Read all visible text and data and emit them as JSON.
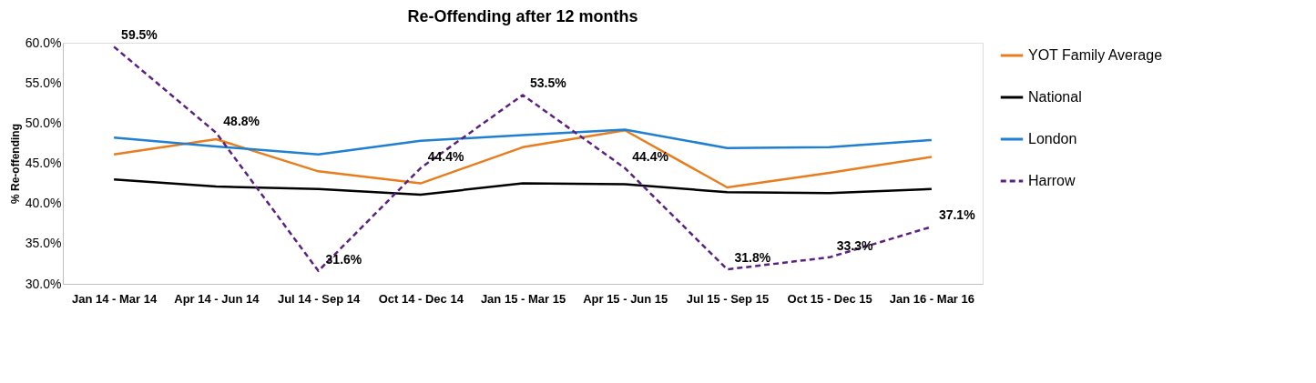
{
  "chart_data": {
    "type": "line",
    "title": "Re-Offending after 12 months",
    "ylabel": "% Re-offending",
    "categories": [
      "Jan 14 - Mar 14",
      "Apr 14 - Jun 14",
      "Jul 14 - Sep 14",
      "Oct 14 - Dec 14",
      "Jan 15 - Mar 15",
      "Apr 15 - Jun 15",
      "Jul 15 - Sep 15",
      "Oct 15 - Dec 15",
      "Jan 16 - Mar 16"
    ],
    "ylim": [
      30,
      60
    ],
    "yticks": [
      {
        "value": 30,
        "label": "30.0%"
      },
      {
        "value": 35,
        "label": "35.0%"
      },
      {
        "value": 40,
        "label": "40.0%"
      },
      {
        "value": 45,
        "label": "45.0%"
      },
      {
        "value": 50,
        "label": "50.0%"
      },
      {
        "value": 55,
        "label": "55.0%"
      },
      {
        "value": 60,
        "label": "60.0%"
      }
    ],
    "grid": false,
    "legend": "right",
    "marker": "none",
    "series": [
      {
        "name": "YOT Family Average",
        "color": "#e87d1e",
        "line_style": "solid",
        "values": [
          46.1,
          48.0,
          44.0,
          42.5,
          47.0,
          49.1,
          42.0,
          43.8,
          45.8
        ]
      },
      {
        "name": "National",
        "color": "#000000",
        "line_style": "solid",
        "values": [
          43.0,
          42.1,
          41.8,
          41.1,
          42.5,
          42.4,
          41.4,
          41.3,
          41.8
        ]
      },
      {
        "name": "London",
        "color": "#1f7fd1",
        "line_style": "solid",
        "values": [
          48.2,
          47.1,
          46.1,
          47.8,
          48.5,
          49.2,
          46.9,
          47.0,
          47.9
        ]
      },
      {
        "name": "Harrow",
        "color": "#5b2182",
        "line_style": "dashed",
        "values": [
          59.5,
          48.8,
          31.6,
          44.4,
          53.5,
          44.4,
          31.8,
          33.3,
          37.1
        ],
        "value_labels": [
          "59.5%",
          "48.8%",
          "31.6%",
          "44.4%",
          "53.5%",
          "44.4%",
          "31.8%",
          "33.3%",
          "37.1%"
        ]
      }
    ]
  }
}
